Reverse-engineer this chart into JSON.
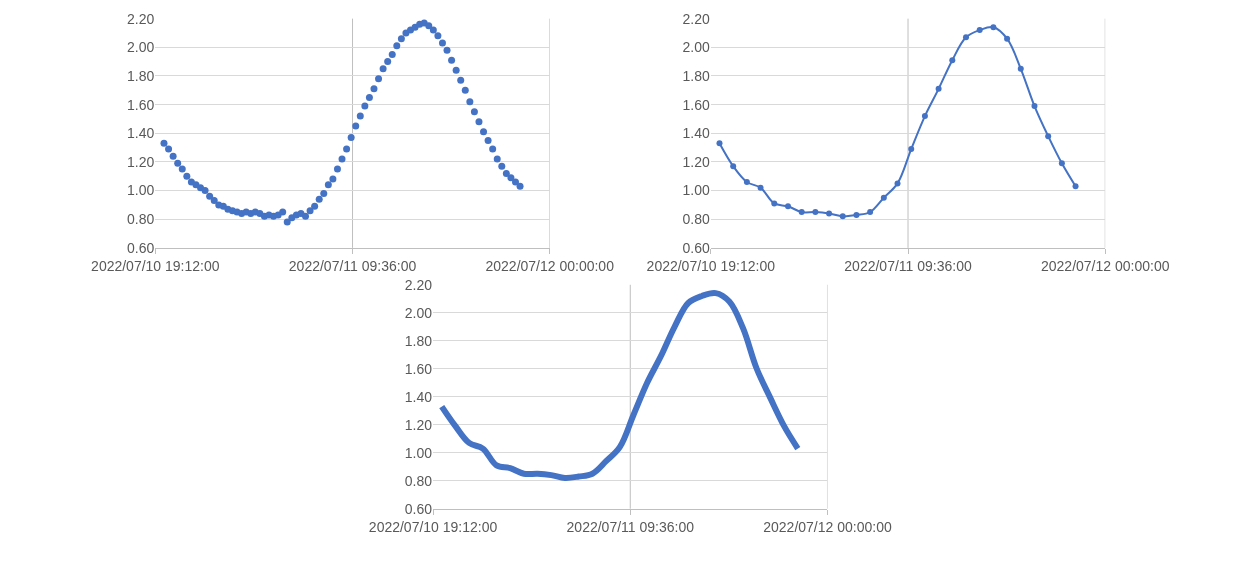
{
  "chart_data": [
    {
      "type": "scatter",
      "marker": "circle",
      "grid": "y",
      "ref_lines": [
        {
          "axis": "x",
          "value": "2022-07-11T09:36",
          "color": "#bfbfbf"
        },
        {
          "axis": "x",
          "value": "2022-07-12T00:00",
          "color": "#bfbfbf"
        }
      ],
      "xlim": [
        "2022-07-10T19:12",
        "2022-07-12T00:00"
      ],
      "xticks": [
        {
          "value": "2022-07-10T19:12",
          "label": "2022/07/10 19:12:00"
        },
        {
          "value": "2022-07-11T09:36",
          "label": "2022/07/11 09:36:00"
        },
        {
          "value": "2022-07-12T00:00",
          "label": "2022/07/12 00:00:00"
        }
      ],
      "ylim": [
        0.6,
        2.2
      ],
      "yticks": [
        {
          "value": 0.6,
          "label": "0.60"
        },
        {
          "value": 0.8,
          "label": "0.80"
        },
        {
          "value": 1.0,
          "label": "1.00"
        },
        {
          "value": 1.2,
          "label": "1.20"
        },
        {
          "value": 1.4,
          "label": "1.40"
        },
        {
          "value": 1.6,
          "label": "1.60"
        },
        {
          "value": 1.8,
          "label": "1.80"
        },
        {
          "value": 2.0,
          "label": "2.00"
        },
        {
          "value": 2.2,
          "label": "2.20"
        }
      ],
      "x": [
        "2022-07-10T19:50",
        "2022-07-10T20:10",
        "2022-07-10T20:30",
        "2022-07-10T20:50",
        "2022-07-10T21:10",
        "2022-07-10T21:30",
        "2022-07-10T21:50",
        "2022-07-10T22:10",
        "2022-07-10T22:30",
        "2022-07-10T22:50",
        "2022-07-10T23:10",
        "2022-07-10T23:30",
        "2022-07-10T23:50",
        "2022-07-11T00:10",
        "2022-07-11T00:30",
        "2022-07-11T00:50",
        "2022-07-11T01:10",
        "2022-07-11T01:30",
        "2022-07-11T01:50",
        "2022-07-11T02:10",
        "2022-07-11T02:30",
        "2022-07-11T02:50",
        "2022-07-11T03:10",
        "2022-07-11T03:30",
        "2022-07-11T03:50",
        "2022-07-11T04:10",
        "2022-07-11T04:30",
        "2022-07-11T04:50",
        "2022-07-11T05:10",
        "2022-07-11T05:30",
        "2022-07-11T05:50",
        "2022-07-11T06:10",
        "2022-07-11T06:30",
        "2022-07-11T06:50",
        "2022-07-11T07:10",
        "2022-07-11T07:30",
        "2022-07-11T07:50",
        "2022-07-11T08:10",
        "2022-07-11T08:30",
        "2022-07-11T08:50",
        "2022-07-11T09:10",
        "2022-07-11T09:30",
        "2022-07-11T09:50",
        "2022-07-11T10:10",
        "2022-07-11T10:30",
        "2022-07-11T10:50",
        "2022-07-11T11:10",
        "2022-07-11T11:30",
        "2022-07-11T11:50",
        "2022-07-11T12:10",
        "2022-07-11T12:30",
        "2022-07-11T12:50",
        "2022-07-11T13:10",
        "2022-07-11T13:30",
        "2022-07-11T13:50",
        "2022-07-11T14:10",
        "2022-07-11T14:30",
        "2022-07-11T14:50",
        "2022-07-11T15:10",
        "2022-07-11T15:30",
        "2022-07-11T15:50",
        "2022-07-11T16:10",
        "2022-07-11T16:30",
        "2022-07-11T16:50",
        "2022-07-11T17:10",
        "2022-07-11T17:30",
        "2022-07-11T17:50",
        "2022-07-11T18:10",
        "2022-07-11T18:30",
        "2022-07-11T18:50",
        "2022-07-11T19:10",
        "2022-07-11T19:30",
        "2022-07-11T19:50",
        "2022-07-11T20:10",
        "2022-07-11T20:30",
        "2022-07-11T20:50",
        "2022-07-11T21:10",
        "2022-07-11T21:30",
        "2022-07-11T21:50"
      ],
      "series": [
        {
          "color": "#4472c4",
          "values": [
            1.33,
            1.29,
            1.24,
            1.19,
            1.15,
            1.1,
            1.06,
            1.04,
            1.02,
            1.0,
            0.96,
            0.93,
            0.9,
            0.89,
            0.87,
            0.86,
            0.85,
            0.84,
            0.85,
            0.84,
            0.85,
            0.84,
            0.82,
            0.83,
            0.82,
            0.83,
            0.85,
            0.78,
            0.81,
            0.83,
            0.84,
            0.82,
            0.86,
            0.89,
            0.94,
            0.98,
            1.04,
            1.08,
            1.15,
            1.22,
            1.29,
            1.37,
            1.45,
            1.52,
            1.59,
            1.65,
            1.71,
            1.78,
            1.85,
            1.9,
            1.95,
            2.01,
            2.06,
            2.1,
            2.12,
            2.14,
            2.16,
            2.17,
            2.15,
            2.12,
            2.08,
            2.03,
            1.98,
            1.91,
            1.84,
            1.77,
            1.7,
            1.62,
            1.55,
            1.48,
            1.41,
            1.35,
            1.29,
            1.22,
            1.17,
            1.12,
            1.09,
            1.06,
            1.03
          ]
        }
      ]
    },
    {
      "type": "line",
      "marker": "circle",
      "line_style": "solid",
      "grid": "y",
      "ref_lines": [
        {
          "axis": "x",
          "value": "2022-07-11T09:36",
          "color": "#bfbfbf"
        },
        {
          "axis": "x",
          "value": "2022-07-12T00:00",
          "color": "#bfbfbf"
        }
      ],
      "xlim": [
        "2022-07-10T19:12",
        "2022-07-12T00:00"
      ],
      "xticks": [
        {
          "value": "2022-07-10T19:12",
          "label": "2022/07/10 19:12:00"
        },
        {
          "value": "2022-07-11T09:36",
          "label": "2022/07/11 09:36:00"
        },
        {
          "value": "2022-07-12T00:00",
          "label": "2022/07/12 00:00:00"
        }
      ],
      "ylim": [
        0.6,
        2.2
      ],
      "yticks": [
        {
          "value": 0.6,
          "label": "0.60"
        },
        {
          "value": 0.8,
          "label": "0.80"
        },
        {
          "value": 1.0,
          "label": "1.00"
        },
        {
          "value": 1.2,
          "label": "1.20"
        },
        {
          "value": 1.4,
          "label": "1.40"
        },
        {
          "value": 1.6,
          "label": "1.60"
        },
        {
          "value": 1.8,
          "label": "1.80"
        },
        {
          "value": 2.0,
          "label": "2.00"
        },
        {
          "value": 2.2,
          "label": "2.20"
        }
      ],
      "x": [
        "2022-07-10T19:50",
        "2022-07-10T20:50",
        "2022-07-10T21:50",
        "2022-07-10T22:50",
        "2022-07-10T23:50",
        "2022-07-11T00:50",
        "2022-07-11T01:50",
        "2022-07-11T02:50",
        "2022-07-11T03:50",
        "2022-07-11T04:50",
        "2022-07-11T05:50",
        "2022-07-11T06:50",
        "2022-07-11T07:50",
        "2022-07-11T08:50",
        "2022-07-11T09:50",
        "2022-07-11T10:50",
        "2022-07-11T11:50",
        "2022-07-11T12:50",
        "2022-07-11T13:50",
        "2022-07-11T14:50",
        "2022-07-11T15:50",
        "2022-07-11T16:50",
        "2022-07-11T17:50",
        "2022-07-11T18:50",
        "2022-07-11T19:50",
        "2022-07-11T20:50",
        "2022-07-11T21:50"
      ],
      "series": [
        {
          "color": "#4472c4",
          "values": [
            1.33,
            1.17,
            1.06,
            1.02,
            0.91,
            0.89,
            0.85,
            0.85,
            0.84,
            0.82,
            0.83,
            0.85,
            0.95,
            1.05,
            1.29,
            1.52,
            1.71,
            1.91,
            2.07,
            2.12,
            2.14,
            2.06,
            1.85,
            1.59,
            1.38,
            1.19,
            1.03
          ]
        }
      ]
    },
    {
      "type": "line",
      "marker": "none",
      "line_style": "solid",
      "grid": "y",
      "ref_lines": [
        {
          "axis": "x",
          "value": "2022-07-11T09:36",
          "color": "#bfbfbf"
        },
        {
          "axis": "x",
          "value": "2022-07-12T00:00",
          "color": "#bfbfbf"
        }
      ],
      "xlim": [
        "2022-07-10T19:12",
        "2022-07-12T00:00"
      ],
      "xticks": [
        {
          "value": "2022-07-10T19:12",
          "label": "2022/07/10 19:12:00"
        },
        {
          "value": "2022-07-11T09:36",
          "label": "2022/07/11 09:36:00"
        },
        {
          "value": "2022-07-12T00:00",
          "label": "2022/07/12 00:00:00"
        }
      ],
      "ylim": [
        0.6,
        2.2
      ],
      "yticks": [
        {
          "value": 0.6,
          "label": "0.60"
        },
        {
          "value": 0.8,
          "label": "0.80"
        },
        {
          "value": 1.0,
          "label": "1.00"
        },
        {
          "value": 1.2,
          "label": "1.20"
        },
        {
          "value": 1.4,
          "label": "1.40"
        },
        {
          "value": 1.6,
          "label": "1.60"
        },
        {
          "value": 1.8,
          "label": "1.80"
        },
        {
          "value": 2.0,
          "label": "2.00"
        },
        {
          "value": 2.2,
          "label": "2.20"
        }
      ],
      "x": [
        "2022-07-10T19:50",
        "2022-07-10T20:50",
        "2022-07-10T21:50",
        "2022-07-10T22:50",
        "2022-07-10T23:50",
        "2022-07-11T00:50",
        "2022-07-11T01:50",
        "2022-07-11T02:50",
        "2022-07-11T03:50",
        "2022-07-11T04:50",
        "2022-07-11T05:50",
        "2022-07-11T06:50",
        "2022-07-11T07:50",
        "2022-07-11T08:50",
        "2022-07-11T09:50",
        "2022-07-11T10:50",
        "2022-07-11T11:50",
        "2022-07-11T12:50",
        "2022-07-11T13:50",
        "2022-07-11T14:50",
        "2022-07-11T15:50",
        "2022-07-11T16:50",
        "2022-07-11T17:50",
        "2022-07-11T18:50",
        "2022-07-11T19:50",
        "2022-07-11T20:50",
        "2022-07-11T21:50"
      ],
      "series": [
        {
          "color": "#4472c4",
          "values": [
            1.33,
            1.19,
            1.07,
            1.03,
            0.91,
            0.89,
            0.85,
            0.85,
            0.84,
            0.82,
            0.83,
            0.85,
            0.94,
            1.04,
            1.27,
            1.5,
            1.69,
            1.9,
            2.07,
            2.12,
            2.14,
            2.08,
            1.89,
            1.6,
            1.39,
            1.19,
            1.03
          ]
        }
      ]
    }
  ]
}
